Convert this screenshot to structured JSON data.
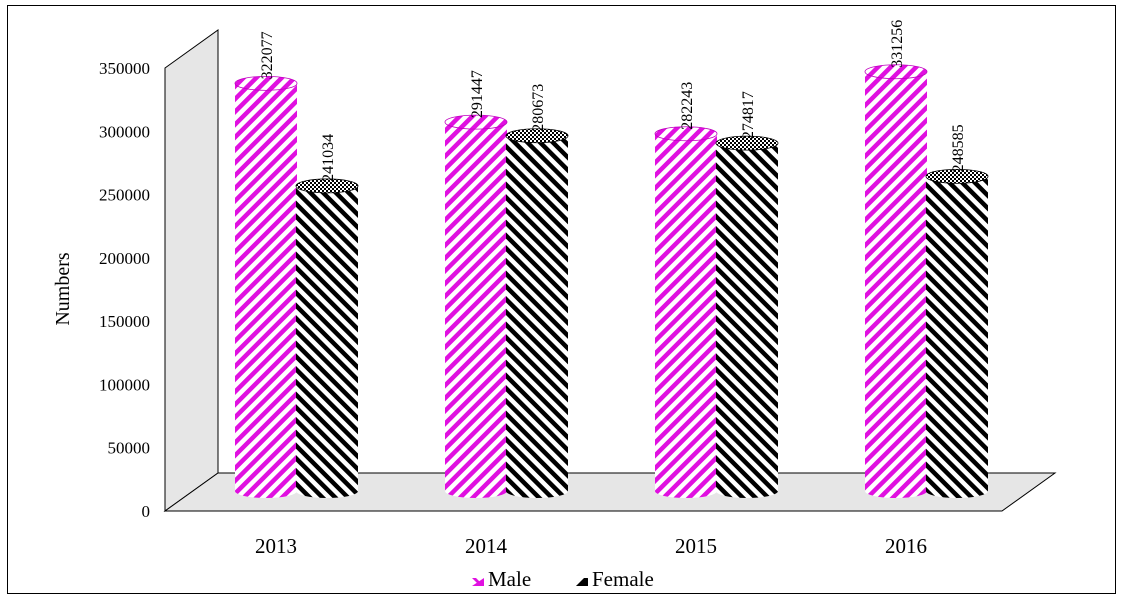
{
  "chart_data": {
    "type": "bar",
    "categories": [
      "2013",
      "2014",
      "2015",
      "2016"
    ],
    "series": [
      {
        "name": "Male",
        "values": [
          322077,
          291447,
          282243,
          331256
        ],
        "color": "#e010e0"
      },
      {
        "name": "Female",
        "values": [
          241034,
          280673,
          274817,
          248585
        ],
        "color": "#000000"
      }
    ],
    "title": "",
    "xlabel": "",
    "ylabel": "Numbers",
    "ylim": [
      0,
      350000
    ],
    "yticks": [
      "0",
      "50000",
      "100000",
      "150000",
      "200000",
      "250000",
      "300000",
      "350000"
    ],
    "grid": false,
    "legend": "bottom"
  }
}
